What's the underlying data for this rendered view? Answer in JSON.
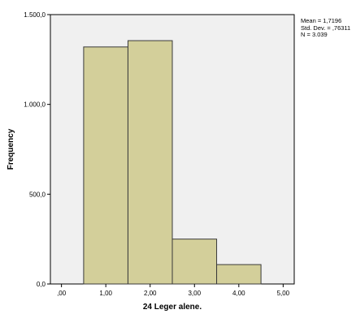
{
  "chart_data": {
    "type": "bar",
    "title": "",
    "xlabel": "24 Leger alene.",
    "ylabel": "Frequency",
    "bin_edges": [
      0.5,
      1.5,
      2.5,
      3.5,
      4.5
    ],
    "values": [
      1320,
      1355,
      250,
      108
    ],
    "xlim": [
      -0.25,
      5.25
    ],
    "ylim": [
      0,
      1500
    ],
    "x_ticks": [
      0,
      1,
      2,
      3,
      4,
      5
    ],
    "x_tick_labels": [
      ",00",
      "1,00",
      "2,00",
      "3,00",
      "4,00",
      "5,00"
    ],
    "y_ticks": [
      0,
      500,
      1000,
      1500
    ],
    "y_tick_labels": [
      "0,0",
      "500,0",
      "1.000,0",
      "1.500,0"
    ],
    "grid": false,
    "stats": {
      "mean": "Mean = 1,7196",
      "std_dev": "Std. Dev. = ,76311",
      "n": "N = 3.039"
    },
    "colors": {
      "bar_fill": "#d3cf9a",
      "bar_stroke": "#3a3a3a",
      "plot_background": "#f0f0f0"
    }
  }
}
